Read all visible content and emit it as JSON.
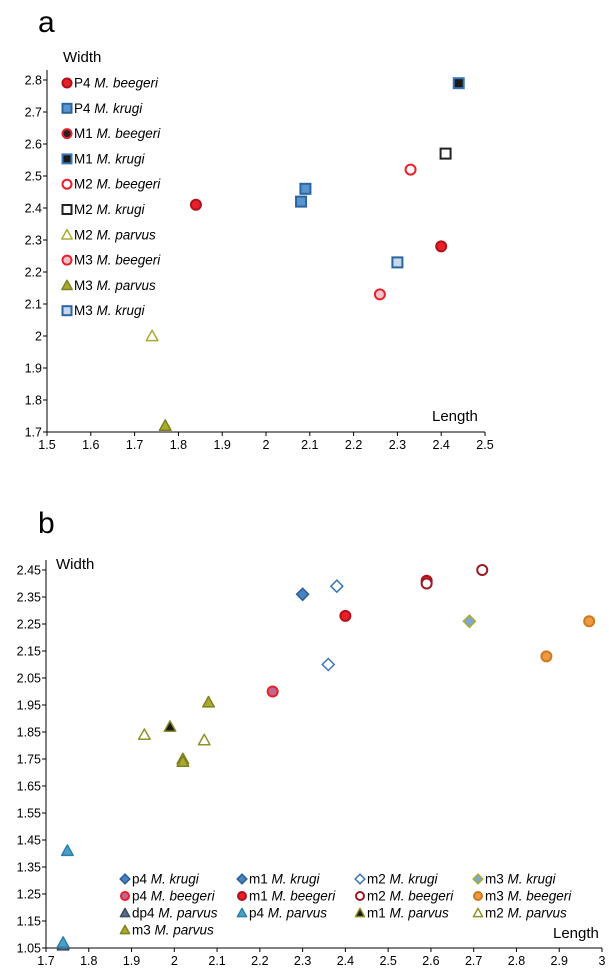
{
  "chart_data": [
    {
      "panel": "a",
      "type": "scatter",
      "xlabel": "Length",
      "ylabel": "Width",
      "xlim": [
        1.5,
        2.5
      ],
      "ylim": [
        1.7,
        2.8
      ],
      "xticks": [
        "1.5",
        "1.6",
        "1.7",
        "1.8",
        "1.9",
        "2",
        "2.1",
        "2.2",
        "2.3",
        "2.4",
        "2.5"
      ],
      "yticks": [
        "1.7",
        "1.8",
        "1.9",
        "2",
        "2.1",
        "2.2",
        "2.3",
        "2.4",
        "2.5",
        "2.6",
        "2.7",
        "2.8"
      ],
      "grid": false,
      "legend_position": "left",
      "series": [
        {
          "tooth": "P4",
          "species": "M. beegeri",
          "marker": "circle",
          "fill": "#e8202a",
          "stroke": "#b0101a",
          "points": [
            [
              1.84,
              2.41
            ],
            [
              2.4,
              2.28
            ]
          ]
        },
        {
          "tooth": "P4",
          "species": "M. krugi",
          "marker": "square",
          "fill": "#5a95cf",
          "stroke": "#2a65a0",
          "points": [
            [
              2.08,
              2.42
            ],
            [
              2.09,
              2.46
            ]
          ]
        },
        {
          "tooth": "M1",
          "species": "M. beegeri",
          "marker": "circle",
          "fill": "#222222",
          "stroke": "#e8202a",
          "points": []
        },
        {
          "tooth": "M1",
          "species": "M. krugi",
          "marker": "square",
          "fill": "#1a1a1a",
          "stroke": "#3a75b5",
          "points": [
            [
              2.44,
              2.79
            ]
          ]
        },
        {
          "tooth": "M2",
          "species": "M. beegeri",
          "marker": "circle-open",
          "fill": "#ffffff",
          "stroke": "#e8202a",
          "points": [
            [
              2.33,
              2.52
            ]
          ]
        },
        {
          "tooth": "M2",
          "species": "M. krugi",
          "marker": "square-open",
          "fill": "#ffffff",
          "stroke": "#222222",
          "points": [
            [
              2.41,
              2.57
            ]
          ]
        },
        {
          "tooth": "M2",
          "species": "M. parvus",
          "marker": "triangle-open",
          "fill": "#ffffff",
          "stroke": "#a8ab2e",
          "points": [
            [
              1.74,
              2.0
            ]
          ]
        },
        {
          "tooth": "M3",
          "species": "M. beegeri",
          "marker": "circle",
          "fill": "#f2c4c8",
          "stroke": "#e8202a",
          "points": [
            [
              2.26,
              2.13
            ]
          ]
        },
        {
          "tooth": "M3",
          "species": "M. parvus",
          "marker": "triangle",
          "fill": "#a8ab2e",
          "stroke": "#7f8220",
          "points": [
            [
              1.77,
              1.72
            ]
          ]
        },
        {
          "tooth": "M3",
          "species": "M. krugi",
          "marker": "square",
          "fill": "#c8d8ec",
          "stroke": "#2a65a0",
          "points": [
            [
              2.3,
              2.23
            ]
          ]
        }
      ]
    },
    {
      "panel": "b",
      "type": "scatter",
      "xlabel": "Length",
      "ylabel": "Width",
      "xlim": [
        1.7,
        3.0
      ],
      "ylim": [
        1.05,
        2.45
      ],
      "xticks": [
        "1.7",
        "1.8",
        "1.9",
        "2",
        "2.1",
        "2.2",
        "2.3",
        "2.4",
        "2.5",
        "2.6",
        "2.7",
        "2.8",
        "2.9",
        "3"
      ],
      "yticks": [
        "1.05",
        "1.15",
        "1.25",
        "1.35",
        "1.45",
        "1.55",
        "1.65",
        "1.75",
        "1.85",
        "1.95",
        "2.05",
        "2.15",
        "2.25",
        "2.35",
        "2.45"
      ],
      "grid": false,
      "legend_position": "bottom",
      "series": [
        {
          "tooth": "p4",
          "species": "M. krugi",
          "marker": "diamond",
          "fill": "#4a82c0",
          "stroke": "#2a5f9a",
          "points": [
            [
              2.3,
              2.36
            ]
          ]
        },
        {
          "tooth": "m1",
          "species": "M. krugi",
          "marker": "diamond",
          "fill": "#4a82c0",
          "stroke": "#2a5f9a",
          "points": []
        },
        {
          "tooth": "m2",
          "species": "M. krugi",
          "marker": "diamond-open",
          "fill": "#ffffff",
          "stroke": "#3a75b5",
          "points": [
            [
              2.38,
              2.39
            ],
            [
              2.36,
              2.1
            ]
          ]
        },
        {
          "tooth": "m3",
          "species": "M. krugi",
          "marker": "diamond",
          "fill": "#7fa7d2",
          "stroke": "#a8ab2e",
          "points": [
            [
              2.69,
              2.26
            ]
          ]
        },
        {
          "tooth": "p4",
          "species": "M. beegeri",
          "marker": "circle",
          "fill": "#c2688e",
          "stroke": "#e8202a",
          "points": [
            [
              2.23,
              2.0
            ]
          ]
        },
        {
          "tooth": "m1",
          "species": "M. beegeri",
          "marker": "circle",
          "fill": "#e8202a",
          "stroke": "#b0101a",
          "points": [
            [
              2.4,
              2.28
            ],
            [
              2.59,
              2.41
            ]
          ]
        },
        {
          "tooth": "m2",
          "species": "M. beegeri",
          "marker": "circle-open",
          "fill": "#ffffff",
          "stroke": "#9a1a22",
          "points": [
            [
              2.59,
              2.4
            ],
            [
              2.72,
              2.45
            ]
          ]
        },
        {
          "tooth": "m3",
          "species": "M. beegeri",
          "marker": "circle",
          "fill": "#ee9a40",
          "stroke": "#d07820",
          "points": [
            [
              2.87,
              2.13
            ],
            [
              2.97,
              2.26
            ]
          ]
        },
        {
          "tooth": "dp4",
          "species": "M. parvus",
          "marker": "triangle",
          "fill": "#5a6b85",
          "stroke": "#3a4a60",
          "points": [
            [
              1.74,
              1.06
            ]
          ]
        },
        {
          "tooth": "p4",
          "species": "M. parvus",
          "marker": "triangle",
          "fill": "#4aa0c8",
          "stroke": "#2a80a8",
          "points": [
            [
              1.75,
              1.41
            ],
            [
              1.74,
              1.07
            ]
          ]
        },
        {
          "tooth": "m1",
          "species": "M. parvus",
          "marker": "triangle",
          "fill": "#1a1a1a",
          "stroke": "#8a8c28",
          "points": [
            [
              1.99,
              1.87
            ]
          ]
        },
        {
          "tooth": "m2",
          "species": "M. parvus",
          "marker": "triangle-open",
          "fill": "#ffffff",
          "stroke": "#8f9228",
          "points": [
            [
              1.93,
              1.84
            ],
            [
              2.07,
              1.82
            ]
          ]
        },
        {
          "tooth": "m3",
          "species": "M. parvus",
          "marker": "triangle",
          "fill": "#a8ab2e",
          "stroke": "#7f8220",
          "points": [
            [
              2.02,
              1.75
            ],
            [
              2.02,
              1.74
            ],
            [
              2.08,
              1.96
            ]
          ]
        }
      ]
    }
  ]
}
